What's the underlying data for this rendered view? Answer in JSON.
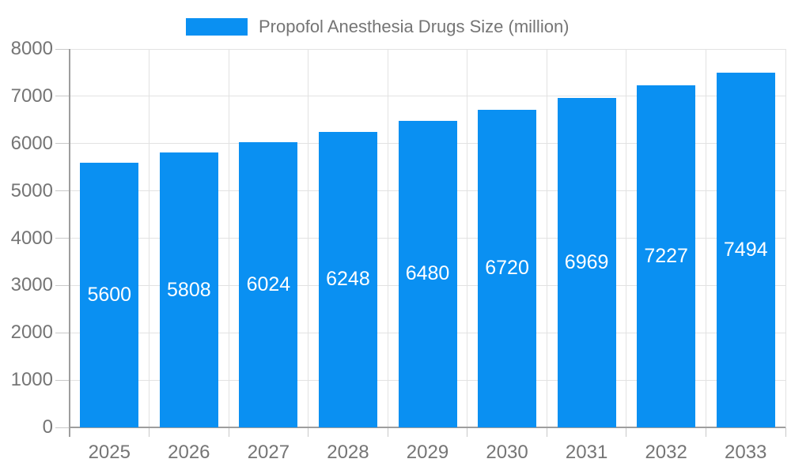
{
  "legend": {
    "label": "Propofol Anesthesia Drugs Size (million)"
  },
  "chart_data": {
    "type": "bar",
    "title": "",
    "xlabel": "",
    "ylabel": "",
    "categories": [
      "2025",
      "2026",
      "2027",
      "2028",
      "2029",
      "2030",
      "2031",
      "2032",
      "2033"
    ],
    "series": [
      {
        "name": "Propofol Anesthesia Drugs Size (million)",
        "values": [
          5600,
          5808,
          6024,
          6248,
          6480,
          6720,
          6969,
          7227,
          7494
        ]
      }
    ],
    "ylim": [
      0,
      8000
    ],
    "ytick_interval": 1000,
    "ytick_labels": [
      "0",
      "1000",
      "2000",
      "3000",
      "4000",
      "5000",
      "6000",
      "7000",
      "8000"
    ],
    "grid": true,
    "legend_position": "top-center",
    "value_label_position": "inside-center"
  },
  "colors": {
    "bar": "#0a90f2",
    "bar_value_label": "#ffffff",
    "axis_line": "#9e9e9e",
    "grid_line": "#e2e2e2",
    "tick_line": "#c9c9c9",
    "axis_text": "#757575",
    "legend_text": "#757575",
    "background": "#ffffff"
  }
}
